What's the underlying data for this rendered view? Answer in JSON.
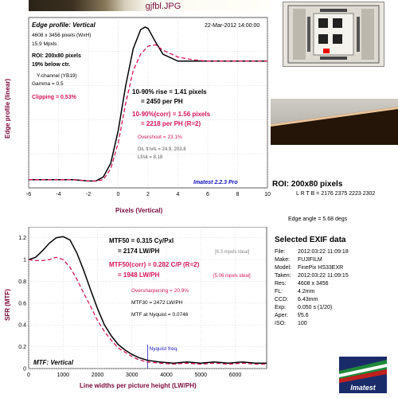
{
  "file_title": "gjfbl.JPG",
  "edge_chart": {
    "title": "Edge profile: Vertical",
    "date": "22-Mar-2012 14:00:00",
    "size": "4608 x 3456 pixels (WxH)",
    "mpxls": "15.9 Mpxls",
    "roi": "ROI: 200x80 pixels",
    "below_ctr": "19% below ctr.",
    "channel": "Y-channel  (YB19)",
    "gamma": "Gamma = 0.5",
    "clipping": "Clipping =  0.53%",
    "rise1": "10-90% rise = 1.41 pixels",
    "rise2": "= 2450 per PH",
    "rise_corr1": "10-90%(corr) = 1.56 pixels",
    "rise_corr2": "= 2218 per PH  (R=2)",
    "overshoot": "Overshoot = 23.1%",
    "dlvl": "Dli, lt lvls = 24.9, 203.8",
    "lrisk": "Lf/sk = 8.18",
    "version": "Imatest 2.2.3 Pro",
    "ylabel": "Edge profile (linear)",
    "xlabel": "Pixels (Vertical)",
    "xticks": [
      "-6",
      "-4",
      "-2",
      "0",
      "2",
      "4",
      "6",
      "8",
      "10"
    ]
  },
  "mtf_chart": {
    "title": "MTF: Vertical",
    "ylabel": "SFR (MTF)",
    "xlabel": "Line widths per picture height (LW/PH)",
    "xticks": [
      "0",
      "1000",
      "2000",
      "3000",
      "4000",
      "5000",
      "6000"
    ],
    "yticks": [
      "0",
      "0.2",
      "0.4",
      "0.6",
      "0.8",
      "1",
      "1.2"
    ],
    "mtf50_1": "MTF50 = 0.315 Cy/Pxl",
    "mtf50_2": "= 2174 LW/PH",
    "ideal1": "[6.3 mpxls ideal]",
    "mtf50c_1": "MTF50(corr) = 0.282 C/P  (R=2)",
    "mtf50c_2": "= 1948 LW/PH",
    "ideal2": "[5.06 mpxls ideal]",
    "oversharp": "Oversharpening = 20.9%",
    "mtf30": "MTF30 = 2472 LW/PH",
    "nyq_mtf": "MTF at Nyquist = 0.0746",
    "nyquist_label": "Nyquist freq."
  },
  "roi_label": "ROI: 200x80 pixels",
  "roi_coords": "L R T B = 2176 2375  2223 2302",
  "edge_angle": "Edge angle = 5.68 degs",
  "exif_title": "Selected EXIF data",
  "exif": [
    {
      "k": "File:",
      "v": "2012:03:22 11:09:18"
    },
    {
      "k": "Make:",
      "v": "FUJIFILM"
    },
    {
      "k": "Model:",
      "v": "FinePix HS33EXR"
    },
    {
      "k": "Taken:",
      "v": "2012:03:22 11:09:15"
    },
    {
      "k": "Res:",
      "v": "4608 x 3456"
    },
    {
      "k": "FL:",
      "v": "4.2mm"
    },
    {
      "k": "CCD:",
      "v": "6.43mm"
    },
    {
      "k": "Exp:",
      "v": "0.050 s  (1/20)"
    },
    {
      "k": "Aper:",
      "v": "f/5.6"
    },
    {
      "k": "ISO:",
      "v": "100"
    }
  ],
  "logo_text": "Imatest",
  "colors": {
    "raw": "#000000",
    "corrected": "#d4145a",
    "accent": "#7a0a3c",
    "version": "#1010c0"
  },
  "chart_data": [
    {
      "type": "line",
      "title": "Edge profile: Vertical",
      "xlabel": "Pixels (Vertical)",
      "ylabel": "Edge profile (linear)",
      "xlim": [
        -6,
        10
      ],
      "ylim": [
        0,
        1.25
      ],
      "grid": true,
      "series": [
        {
          "x": [
            -6,
            -4,
            -3,
            -2,
            -1.5,
            -1,
            -0.5,
            0,
            0.5,
            1,
            1.5,
            1.8,
            2,
            2.5,
            3,
            4,
            5,
            6,
            7,
            8,
            9,
            10
          ],
          "values": [
            0.06,
            0.06,
            0.06,
            0.05,
            0.05,
            0.08,
            0.18,
            0.42,
            0.75,
            1.02,
            1.16,
            1.18,
            1.17,
            1.07,
            0.98,
            0.93,
            0.93,
            0.93,
            0.93,
            0.93,
            0.93,
            0.93
          ]
        },
        {
          "x": [
            -6,
            -4,
            -3,
            -2,
            -1.5,
            -1,
            -0.5,
            0,
            0.5,
            1,
            1.5,
            2,
            2.5,
            3,
            4,
            5,
            6,
            7,
            8,
            9,
            10
          ],
          "values": [
            0.06,
            0.06,
            0.06,
            0.05,
            0.05,
            0.06,
            0.14,
            0.33,
            0.62,
            0.86,
            0.98,
            1.04,
            1.05,
            1.01,
            0.96,
            0.94,
            0.93,
            0.93,
            0.93,
            0.93,
            0.93
          ]
        }
      ]
    },
    {
      "type": "line",
      "title": "MTF: Vertical",
      "xlabel": "Line widths per picture height (LW/PH)",
      "ylabel": "SFR (MTF)",
      "xlim": [
        0,
        6912
      ],
      "ylim": [
        0,
        1.3
      ],
      "grid": true,
      "series": [
        {
          "x": [
            0,
            200,
            400,
            600,
            800,
            1000,
            1200,
            1400,
            1600,
            1800,
            2000,
            2200,
            2400,
            2600,
            2800,
            3000,
            3200,
            3456,
            3800,
            4200,
            4600,
            5000,
            5400,
            5800,
            6200,
            6600,
            6912
          ],
          "values": [
            1.0,
            1.02,
            1.08,
            1.15,
            1.2,
            1.21,
            1.18,
            1.06,
            0.9,
            0.72,
            0.55,
            0.4,
            0.3,
            0.22,
            0.17,
            0.13,
            0.1,
            0.075,
            0.06,
            0.05,
            0.06,
            0.05,
            0.06,
            0.05,
            0.06,
            0.05,
            0.05
          ]
        },
        {
          "x": [
            0,
            200,
            400,
            600,
            800,
            1000,
            1200,
            1400,
            1600,
            1800,
            2000,
            2200,
            2400,
            2600,
            2800,
            3000,
            3200,
            3456,
            3800,
            4200,
            4600,
            5000,
            5400,
            5800,
            6200,
            6600,
            6912
          ],
          "values": [
            1.0,
            0.99,
            0.99,
            1.0,
            1.02,
            1.0,
            0.93,
            0.82,
            0.69,
            0.57,
            0.44,
            0.34,
            0.26,
            0.19,
            0.15,
            0.11,
            0.08,
            0.06,
            0.05,
            0.04,
            0.05,
            0.04,
            0.05,
            0.04,
            0.05,
            0.04,
            0.04
          ]
        }
      ],
      "annotations": [
        {
          "x": 3456,
          "label": "Nyquist freq."
        }
      ]
    }
  ]
}
